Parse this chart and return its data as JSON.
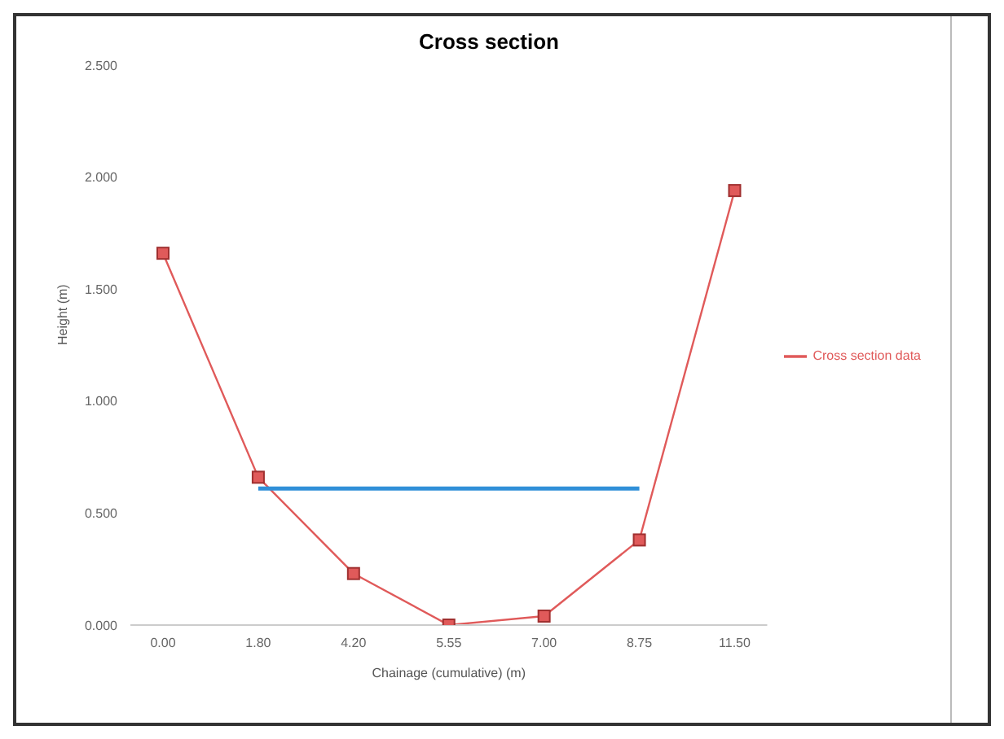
{
  "chart_data": {
    "type": "line",
    "title": "Cross section",
    "xlabel": "Chainage (cumulative) (m)",
    "ylabel": "Height (m)",
    "categories": [
      "0.00",
      "1.80",
      "4.20",
      "5.55",
      "7.00",
      "8.75",
      "11.50"
    ],
    "series": [
      {
        "name": "Cross section data",
        "color": "#e05a5a",
        "values": [
          1.66,
          0.66,
          0.23,
          0.0,
          0.04,
          0.38,
          1.94
        ],
        "marker": "square"
      },
      {
        "color": "#2f8fd8",
        "values": [
          null,
          0.61,
          0.61,
          0.61,
          0.61,
          0.61,
          null
        ],
        "marker": "none"
      }
    ],
    "ylim": [
      0,
      2.5
    ],
    "yticks": [
      {
        "value": 0,
        "label": "0.000"
      },
      {
        "value": 0.5,
        "label": "0.500"
      },
      {
        "value": 1,
        "label": "1.000"
      },
      {
        "value": 1.5,
        "label": "1.500"
      },
      {
        "value": 2,
        "label": "2.000"
      },
      {
        "value": 2.5,
        "label": "2.500"
      }
    ],
    "grid": false,
    "legend": "right"
  }
}
